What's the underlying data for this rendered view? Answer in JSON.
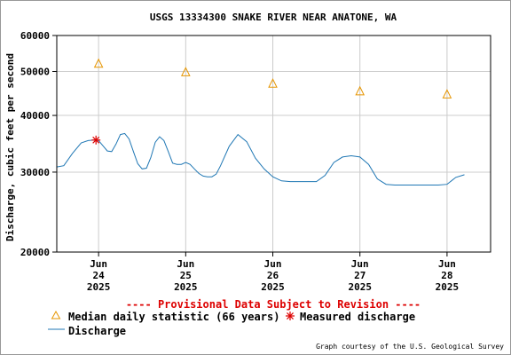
{
  "chart_data": {
    "type": "line",
    "title": "USGS 13334300 SNAKE RIVER NEAR ANATONE, WA",
    "ylabel": "Discharge, cubic feet per second",
    "y_scale": "log",
    "ylim": [
      20000,
      60000
    ],
    "y_ticks": [
      {
        "value": 20000,
        "label": "20000"
      },
      {
        "value": 30000,
        "label": "30000"
      },
      {
        "value": 40000,
        "label": "40000"
      },
      {
        "value": 50000,
        "label": "50000"
      },
      {
        "value": 60000,
        "label": "60000"
      }
    ],
    "xlim": [
      23.52,
      28.5
    ],
    "x_ticks": [
      {
        "value": 24,
        "month": "Jun",
        "day": "24",
        "year": "2025"
      },
      {
        "value": 25,
        "month": "Jun",
        "day": "25",
        "year": "2025"
      },
      {
        "value": 26,
        "month": "Jun",
        "day": "26",
        "year": "2025"
      },
      {
        "value": 27,
        "month": "Jun",
        "day": "27",
        "year": "2025"
      },
      {
        "value": 28,
        "month": "Jun",
        "day": "28",
        "year": "2025"
      }
    ],
    "grid": true,
    "series": [
      {
        "name": "Discharge",
        "color": "#1f77b4",
        "x": [
          23.52,
          23.6,
          23.7,
          23.8,
          23.88,
          23.95,
          24.0,
          24.05,
          24.1,
          24.15,
          24.2,
          24.25,
          24.3,
          24.35,
          24.4,
          24.45,
          24.5,
          24.55,
          24.6,
          24.65,
          24.7,
          24.75,
          24.8,
          24.85,
          24.9,
          24.95,
          25.0,
          25.05,
          25.1,
          25.15,
          25.2,
          25.25,
          25.3,
          25.35,
          25.4,
          25.5,
          25.6,
          25.7,
          25.8,
          25.9,
          26.0,
          26.1,
          26.2,
          26.3,
          26.4,
          26.5,
          26.6,
          26.7,
          26.8,
          26.9,
          27.0,
          27.1,
          27.2,
          27.3,
          27.4,
          27.5,
          27.6,
          27.7,
          27.8,
          27.9,
          28.0,
          28.1,
          28.2
        ],
        "y": [
          30800,
          31000,
          33000,
          34800,
          35200,
          35300,
          35200,
          34300,
          33400,
          33300,
          34600,
          36300,
          36500,
          35500,
          33300,
          31300,
          30500,
          30600,
          32300,
          34900,
          35900,
          35200,
          33300,
          31400,
          31200,
          31200,
          31500,
          31200,
          30500,
          29800,
          29400,
          29300,
          29300,
          29700,
          31000,
          34200,
          36300,
          35000,
          32200,
          30500,
          29300,
          28700,
          28600,
          28600,
          28600,
          28600,
          29500,
          31500,
          32400,
          32600,
          32400,
          31200,
          29000,
          28200,
          28100,
          28100,
          28100,
          28100,
          28100,
          28100,
          28200,
          29200,
          29600
        ]
      }
    ],
    "median_points": {
      "name": "Median daily statistic (66 years)",
      "color": "#e69500",
      "x": [
        24.0,
        25.0,
        26.0,
        27.0,
        28.0
      ],
      "y": [
        52000,
        49800,
        47000,
        45200,
        44500
      ]
    },
    "measured_points": {
      "name": "Measured discharge",
      "color": "#dd0000",
      "x": [
        23.97
      ],
      "y": [
        35300
      ]
    },
    "provisional_note": "---- Provisional Data Subject to Revision ----",
    "credit": "Graph courtesy of the U.S. Geological Survey",
    "grid_color": "#cccccc"
  }
}
